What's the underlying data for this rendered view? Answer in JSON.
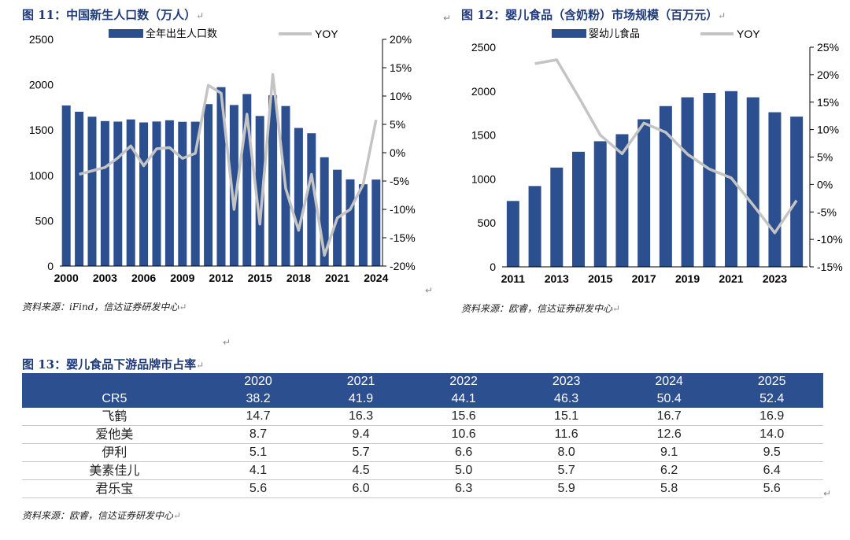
{
  "fig11": {
    "title": "图 11：中国新生人口数（万人）",
    "source": "资料来源：iFind，信达证券研发中心",
    "chart_data": {
      "type": "bar+line",
      "legend": [
        "全年出生人口数",
        "YOY"
      ],
      "x": [
        2000,
        2001,
        2002,
        2003,
        2004,
        2005,
        2006,
        2007,
        2008,
        2009,
        2010,
        2011,
        2012,
        2013,
        2014,
        2015,
        2016,
        2017,
        2018,
        2019,
        2020,
        2021,
        2022,
        2023,
        2024
      ],
      "x_tick_labels": [
        "2000",
        "2003",
        "2006",
        "2009",
        "2012",
        "2015",
        "2018",
        "2021",
        "2024"
      ],
      "bar_values": [
        1771,
        1702,
        1647,
        1599,
        1593,
        1617,
        1584,
        1594,
        1608,
        1591,
        1592,
        1786,
        1973,
        1776,
        1897,
        1655,
        1883,
        1765,
        1523,
        1465,
        1200,
        1062,
        956,
        902,
        954
      ],
      "yoy_values": [
        -3.8,
        -3.2,
        -2.6,
        -0.9,
        1.2,
        -2.3,
        0.7,
        0.9,
        -1.0,
        -0.1,
        11.9,
        10.5,
        -10.0,
        6.8,
        -12.6,
        13.8,
        -6.3,
        -13.7,
        -3.8,
        -18.1,
        -11.5,
        -10.0,
        -5.6,
        5.8
      ],
      "yoy_x": [
        2001,
        2002,
        2003,
        2004,
        2005,
        2006,
        2007,
        2008,
        2009,
        2010,
        2011,
        2012,
        2013,
        2014,
        2015,
        2016,
        2017,
        2018,
        2019,
        2020,
        2021,
        2022,
        2023,
        2024
      ],
      "y_left_ticks": [
        "0",
        "500",
        "1000",
        "1500",
        "2000",
        "2500"
      ],
      "y_left_range": [
        0,
        2500
      ],
      "y_right_ticks": [
        "-20%",
        "-15%",
        "-10%",
        "-5%",
        "0%",
        "5%",
        "10%",
        "15%",
        "20%"
      ],
      "y_right_range": [
        -20,
        20
      ]
    }
  },
  "fig12": {
    "title": "图 12：婴儿食品（含奶粉）市场规模（百万元）",
    "source": "资料来源：欧睿，信达证券研发中心",
    "chart_data": {
      "type": "bar+line",
      "legend": [
        "婴幼儿食品",
        "YOY"
      ],
      "x": [
        2011,
        2012,
        2013,
        2014,
        2015,
        2016,
        2017,
        2018,
        2019,
        2020,
        2021,
        2022,
        2023,
        2024
      ],
      "x_tick_labels": [
        "2011",
        "2013",
        "2015",
        "2017",
        "2019",
        "2021",
        "2023"
      ],
      "bar_values": [
        750,
        920,
        1130,
        1310,
        1430,
        1510,
        1680,
        1830,
        1930,
        1980,
        2000,
        1930,
        1760,
        1710
      ],
      "yoy_values": [
        22.0,
        22.7,
        16.0,
        9.0,
        5.6,
        11.2,
        9.5,
        5.5,
        2.8,
        1.2,
        -3.7,
        -8.8,
        -2.9
      ],
      "yoy_x": [
        2012,
        2013,
        2014,
        2015,
        2016,
        2017,
        2018,
        2019,
        2020,
        2021,
        2022,
        2023,
        2024
      ],
      "y_left_ticks": [
        "0",
        "500",
        "1000",
        "1500",
        "2000",
        "2500"
      ],
      "y_left_range": [
        0,
        2500
      ],
      "y_right_ticks": [
        "-15%",
        "-10%",
        "-5%",
        "0%",
        "5%",
        "10%",
        "15%",
        "20%",
        "25%"
      ],
      "y_right_range": [
        -15,
        25
      ]
    }
  },
  "fig13": {
    "title": "图 13：婴儿食品下游品牌市占率",
    "source": "资料来源：欧睿，信达证券研发中心",
    "chart_data": {
      "type": "table",
      "header_years": [
        "2020",
        "2021",
        "2022",
        "2023",
        "2024",
        "2025"
      ],
      "cr5_label": "CR5",
      "cr5_values": [
        "38.2",
        "41.9",
        "44.1",
        "46.3",
        "50.4",
        "52.4"
      ],
      "rows": [
        {
          "name": "飞鹤",
          "values": [
            "14.7",
            "16.3",
            "15.6",
            "15.1",
            "16.7",
            "16.9"
          ]
        },
        {
          "name": "爱他美",
          "values": [
            "8.7",
            "9.4",
            "10.6",
            "11.6",
            "12.6",
            "14.0"
          ]
        },
        {
          "name": "伊利",
          "values": [
            "5.1",
            "5.7",
            "6.6",
            "8.0",
            "9.1",
            "9.5"
          ]
        },
        {
          "name": "美素佳儿",
          "values": [
            "4.1",
            "4.5",
            "5.0",
            "5.7",
            "6.2",
            "6.4"
          ]
        },
        {
          "name": "君乐宝",
          "values": [
            "5.6",
            "6.0",
            "6.3",
            "5.9",
            "5.8",
            "5.6"
          ]
        }
      ]
    }
  },
  "colors": {
    "bar": "#2c4f90",
    "line": "#c4c4c4",
    "header": "#2c4f90",
    "title": "#1f3a77"
  },
  "return_mark": "↵"
}
